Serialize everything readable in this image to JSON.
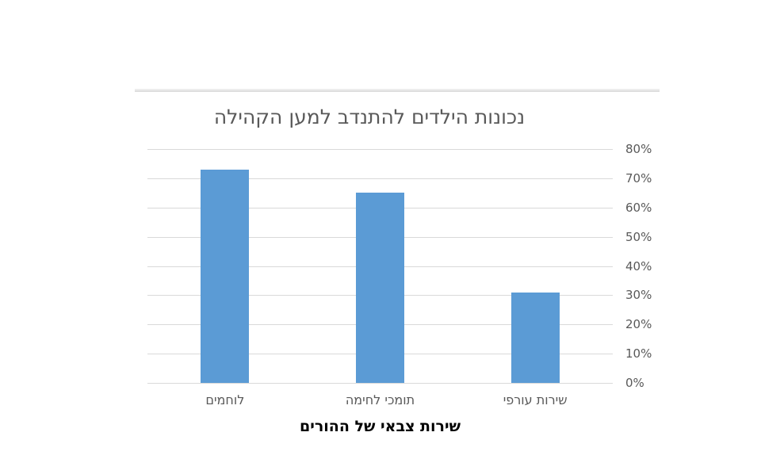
{
  "page": {
    "background": "#ffffff"
  },
  "chart_data": {
    "type": "bar",
    "title": "נכונות הילדים להתנדב למען הקהילה",
    "xlabel": "שירות צבאי של ההורים",
    "ylabel": "",
    "categories": [
      "לוחמים",
      "תומכי לחימה",
      "שירות עורפי"
    ],
    "values": [
      73,
      65,
      31
    ],
    "y_ticks": [
      "0%",
      "10%",
      "20%",
      "30%",
      "40%",
      "50%",
      "60%",
      "70%",
      "80%"
    ],
    "y_min": 0,
    "y_max": 80,
    "value_axis_side": "right",
    "grid": true,
    "legend": "none",
    "direction": "rtl",
    "bar_color": "#5b9bd5",
    "gridline_color": "#d9d9d9",
    "tick_label_color": "#595959",
    "title_color": "#595959",
    "xlabel_color": "#000000"
  }
}
